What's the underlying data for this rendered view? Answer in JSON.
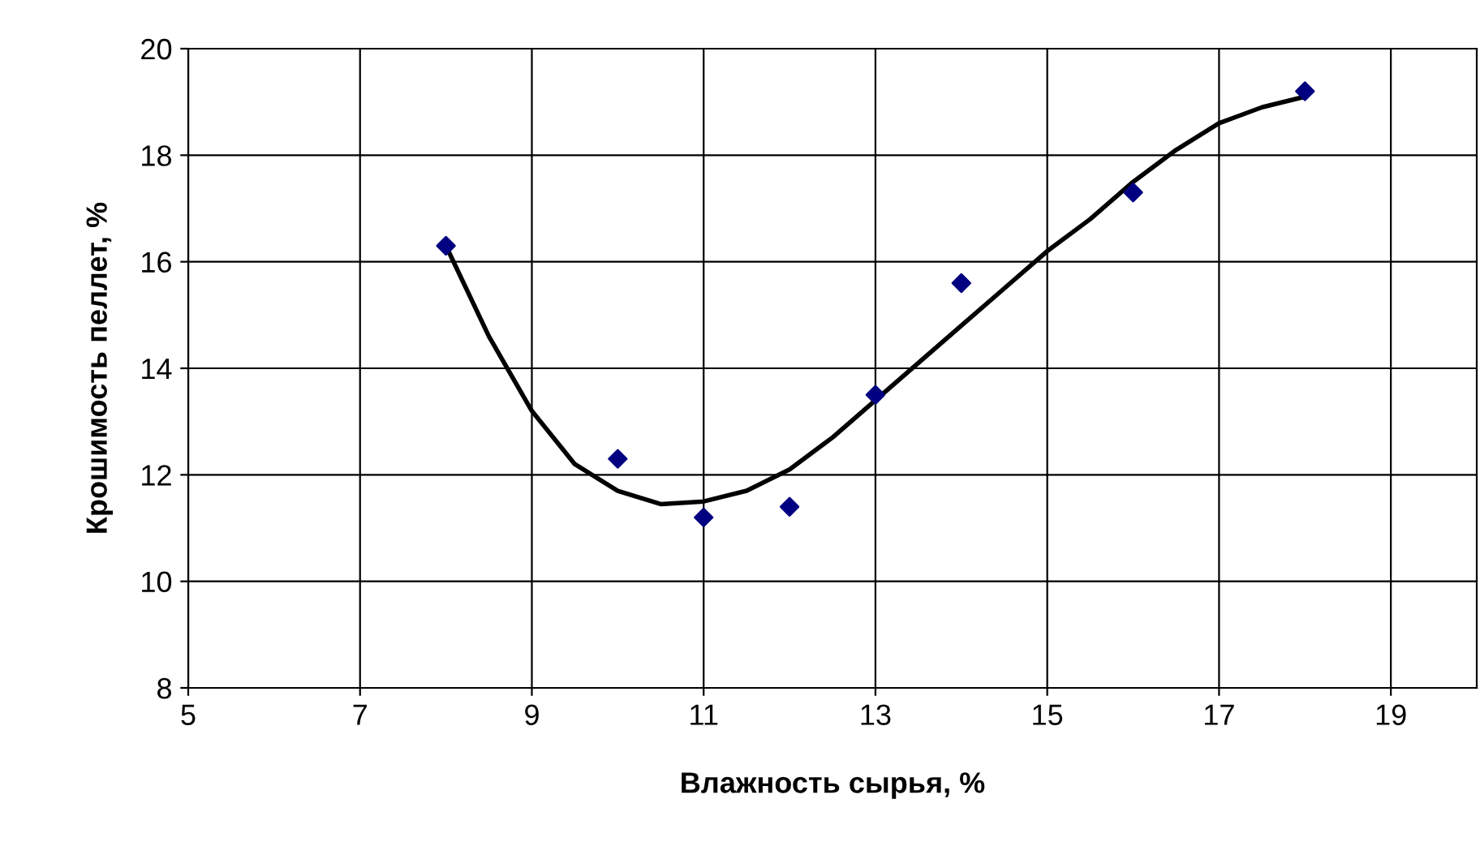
{
  "chart_data": {
    "type": "scatter",
    "xlabel": "Влажность сырья, %",
    "ylabel": "Крошимость пеллет, %",
    "xlim": [
      5,
      20
    ],
    "xticks": [
      5,
      7,
      9,
      11,
      13,
      15,
      17,
      19
    ],
    "ylim": [
      8,
      20
    ],
    "yticks": [
      8,
      10,
      12,
      14,
      16,
      18,
      20
    ],
    "grid": true,
    "legend": false,
    "series": [
      {
        "color": "#000080",
        "marker": "diamond",
        "x": [
          8,
          10,
          11,
          12,
          13,
          14,
          16,
          18
        ],
        "values": [
          16.3,
          12.3,
          11.2,
          11.4,
          13.5,
          15.6,
          17.3,
          19.2
        ]
      },
      {
        "type": "line",
        "color": "#000000",
        "marker": "none",
        "line_style": "solid",
        "x": [
          8,
          8.5,
          9,
          9.5,
          10,
          10.5,
          11,
          11.5,
          12,
          12.5,
          13,
          13.5,
          14,
          14.5,
          15,
          15.5,
          16,
          16.5,
          17,
          17.5,
          18
        ],
        "values": [
          16.3,
          14.6,
          13.2,
          12.2,
          11.7,
          11.45,
          11.5,
          11.7,
          12.1,
          12.7,
          13.4,
          14.1,
          14.8,
          15.5,
          16.2,
          16.8,
          17.5,
          18.1,
          18.6,
          18.9,
          19.1
        ]
      }
    ]
  }
}
